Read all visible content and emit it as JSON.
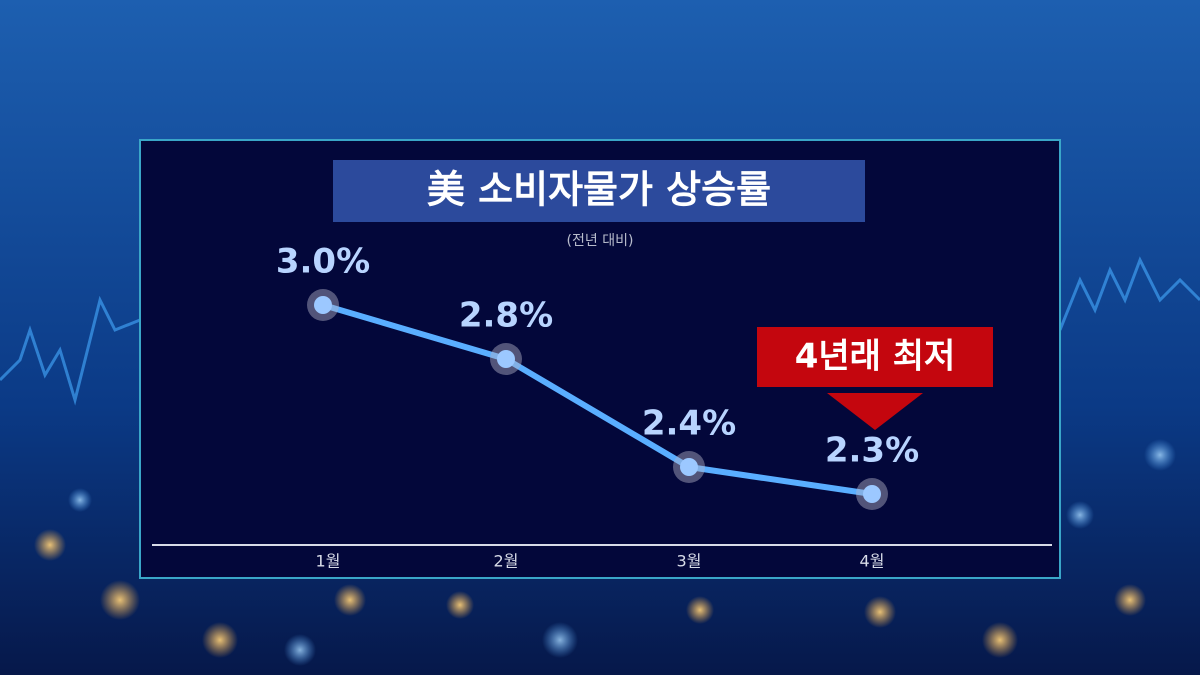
{
  "chart_data": {
    "type": "line",
    "title": "美 소비자물가 상승률",
    "subtitle": "(전년 대비)",
    "categories": [
      "1월",
      "2월",
      "3월",
      "4월"
    ],
    "values": [
      3.0,
      2.8,
      2.4,
      2.3
    ],
    "value_labels": [
      "3.0%",
      "2.8%",
      "2.4%",
      "2.3%"
    ],
    "color": "#5aaeff",
    "annotation": "4년래 최저"
  }
}
